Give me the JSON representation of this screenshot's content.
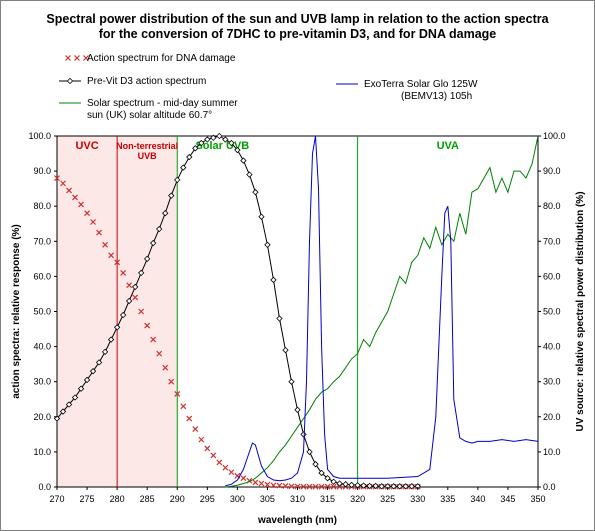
{
  "chart_data": {
    "type": "line",
    "title_lines": [
      "Spectral power distribution of the sun and UVB lamp in relation to the action spectra",
      "for the conversion of 7DHC to pre-vitamin D3, and for DNA damage"
    ],
    "xlabel": "wavelength (nm)",
    "ylabel_left": "action spectra: relative response (%)",
    "ylabel_right": "UV source: relative spectral power distribution (%)",
    "xlim": [
      270,
      350
    ],
    "ylim": [
      0,
      100
    ],
    "x_ticks": [
      "270",
      "275",
      "280",
      "285",
      "290",
      "295",
      "300",
      "305",
      "310",
      "315",
      "320",
      "325",
      "330",
      "335",
      "340",
      "345",
      "350"
    ],
    "y_ticks": [
      "0.0",
      "10.0",
      "20.0",
      "30.0",
      "40.0",
      "50.0",
      "60.0",
      "70.0",
      "80.0",
      "90.0",
      "100.0"
    ],
    "colors": {
      "dna": "#d03030",
      "previt": "#000000",
      "solar": "#008000",
      "lamp": "#0000cc",
      "region_line_red": "#cc0000",
      "region_line_green": "#00a000",
      "uvc_fill": "#fde8e8"
    },
    "regions": [
      {
        "x0": 270,
        "x1": 280,
        "label": "UVC",
        "label_x": 275,
        "color": "#cc0000"
      },
      {
        "x0": 280,
        "x1": 290,
        "label": "Non-terrestrial",
        "label2": "UVB",
        "label_x": 285,
        "color": "#cc0000"
      },
      {
        "x0": 290,
        "x1": 320,
        "label": "Solar UVB",
        "label_x": 297.5,
        "color": "#00a000"
      },
      {
        "x0": 320,
        "x1": 350,
        "label": "UVA",
        "label_x": 335,
        "color": "#00a000"
      }
    ],
    "legend": [
      {
        "series": "dna",
        "text_lines": [
          "Action spectrum for DNA damage"
        ]
      },
      {
        "series": "previt",
        "text_lines": [
          "Pre-Vit D3 action spectrum"
        ]
      },
      {
        "series": "solar",
        "text_lines": [
          "Solar spectrum - mid-day summer",
          "sun (UK)  solar altitude 60.7°"
        ]
      },
      {
        "series": "lamp",
        "text_lines": [
          "ExoTerra Solar Glo 125W",
          "(BEMV13) 105h"
        ]
      }
    ],
    "series": [
      {
        "id": "dna",
        "name": "Action spectrum for DNA damage",
        "axis": "left",
        "style": "x-markers",
        "x": [
          270,
          271,
          272,
          273,
          274,
          275,
          276,
          277,
          278,
          279,
          280,
          281,
          282,
          283,
          284,
          285,
          286,
          287,
          288,
          289,
          290,
          291,
          292,
          293,
          294,
          295,
          296,
          297,
          298,
          299,
          300,
          301,
          302,
          303,
          304,
          305,
          306,
          307,
          308,
          309,
          310,
          311,
          312,
          313,
          314,
          315,
          316,
          317,
          318,
          319,
          320,
          321,
          322,
          323,
          324,
          325,
          326,
          327,
          328,
          329,
          330
        ],
        "y": [
          88,
          86.5,
          84.5,
          82.5,
          80.5,
          78,
          75.5,
          72.5,
          69,
          66,
          64,
          61,
          57.5,
          54,
          50,
          46,
          42,
          38,
          34,
          30,
          26.5,
          23,
          19.5,
          16.5,
          13.5,
          11,
          9,
          7,
          5.5,
          4.2,
          3.2,
          2.5,
          1.8,
          1.3,
          1.0,
          0.7,
          0.5,
          0.4,
          0.3,
          0.2,
          0.15,
          0.1,
          0.1,
          0.1,
          0.1,
          0.1,
          0.1,
          0.1,
          0.1,
          0.1,
          0.1,
          0.1,
          0.1,
          0.1,
          0.1,
          0.1,
          0.1,
          0.1,
          0.1,
          0.1,
          0.1
        ]
      },
      {
        "id": "previt",
        "name": "Pre-Vit D3 action spectrum",
        "axis": "left",
        "style": "line-diamond",
        "x": [
          270,
          271,
          272,
          273,
          274,
          275,
          276,
          277,
          278,
          279,
          280,
          281,
          282,
          283,
          284,
          285,
          286,
          287,
          288,
          289,
          290,
          291,
          292,
          293,
          294,
          295,
          296,
          297,
          298,
          299,
          300,
          301,
          302,
          303,
          304,
          305,
          306,
          307,
          308,
          309,
          310,
          311,
          312,
          313,
          314,
          315,
          316,
          317,
          318,
          319,
          320,
          321,
          322,
          323,
          324,
          325,
          326,
          327,
          328,
          329,
          330
        ],
        "y": [
          19.5,
          21.5,
          23.5,
          25.5,
          28,
          30.5,
          33,
          35.5,
          38.5,
          42,
          45.5,
          49,
          53,
          57,
          61,
          65,
          69.5,
          73.5,
          78,
          83,
          87.5,
          91,
          94,
          96.5,
          98,
          99,
          99.5,
          100,
          99,
          98,
          96,
          93,
          89,
          84,
          77,
          69,
          59,
          48,
          39,
          30,
          22,
          15,
          10,
          6.5,
          4,
          2.5,
          1.5,
          1,
          0.8,
          0.6,
          0.5,
          0.4,
          0.3,
          0.3,
          0.2,
          0.2,
          0.2,
          0.2,
          0.2,
          0.2,
          0.2
        ]
      },
      {
        "id": "solar",
        "name": "Solar spectrum - mid-day summer sun (UK) solar altitude 60.7°",
        "axis": "right",
        "style": "line",
        "x": [
          298,
          299,
          300,
          301,
          302,
          303,
          304,
          305,
          306,
          307,
          308,
          309,
          310,
          311,
          312,
          313,
          314,
          315,
          316,
          317,
          318,
          319,
          320,
          321,
          322,
          323,
          324,
          325,
          326,
          327,
          328,
          329,
          330,
          331,
          332,
          333,
          334,
          335,
          336,
          337,
          338,
          339,
          340,
          341,
          342,
          343,
          344,
          345,
          346,
          347,
          348,
          349,
          350
        ],
        "y": [
          0,
          0.2,
          0.5,
          1,
          1.5,
          2.5,
          4,
          5.5,
          7.5,
          10,
          12,
          14.5,
          17,
          19.5,
          22,
          25,
          27,
          28,
          30,
          31.5,
          34,
          36.5,
          38,
          42,
          40,
          44,
          47,
          50,
          55,
          60,
          58,
          64,
          66,
          71,
          68,
          74,
          69,
          72,
          70,
          78,
          72,
          84,
          85,
          88,
          91,
          84,
          88,
          84,
          90,
          90,
          88,
          92,
          100
        ]
      },
      {
        "id": "lamp",
        "name": "ExoTerra Solar Glo 125W (BEMV13) 105h",
        "axis": "right",
        "style": "line",
        "x": [
          298,
          299,
          300,
          301,
          302,
          302.5,
          303,
          303.5,
          304,
          305,
          306,
          307,
          308,
          309,
          310,
          311,
          311.5,
          312,
          312.5,
          313,
          313.5,
          314,
          314.5,
          315,
          316,
          317,
          318,
          319,
          320,
          325,
          330,
          332,
          333,
          334,
          334.5,
          335,
          335.5,
          336,
          337,
          338,
          339,
          340,
          342,
          344,
          346,
          348,
          350
        ],
        "y": [
          0.3,
          0.8,
          2,
          5,
          10,
          12.5,
          12,
          9,
          6,
          3,
          2,
          1.8,
          2,
          2.5,
          4,
          10,
          30,
          70,
          95,
          100,
          85,
          40,
          15,
          5,
          3,
          2.5,
          2.5,
          2.5,
          2.5,
          2.5,
          3,
          5,
          20,
          60,
          78,
          80,
          70,
          25,
          14,
          13,
          12.5,
          13,
          13,
          13.5,
          13,
          13.5,
          13
        ]
      }
    ]
  }
}
